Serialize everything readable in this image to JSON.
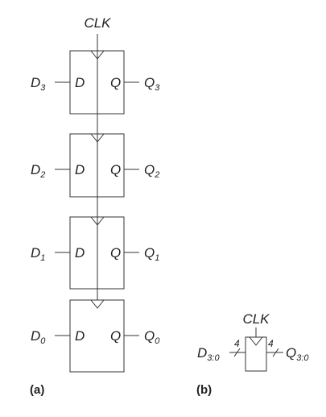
{
  "clk_label": "CLK",
  "d_port": "D",
  "q_port": "Q",
  "flip_flops": [
    {
      "d_base": "D",
      "d_sub": "3",
      "q_base": "Q",
      "q_sub": "3"
    },
    {
      "d_base": "D",
      "d_sub": "2",
      "q_base": "Q",
      "q_sub": "2"
    },
    {
      "d_base": "D",
      "d_sub": "1",
      "q_base": "Q",
      "q_sub": "1"
    },
    {
      "d_base": "D",
      "d_sub": "0",
      "q_base": "Q",
      "q_sub": "0"
    }
  ],
  "register": {
    "clk_label": "CLK",
    "d_base": "D",
    "d_sub": "3:0",
    "q_base": "Q",
    "q_sub": "3:0",
    "width_in": "4",
    "width_out": "4"
  },
  "captions": {
    "a": "(a)",
    "b": "(b)"
  }
}
